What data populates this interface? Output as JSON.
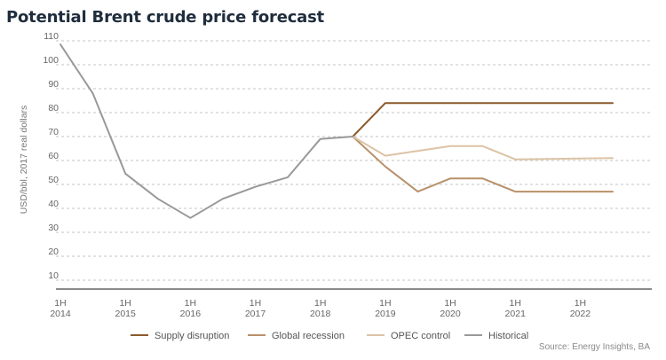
{
  "chart_data": {
    "type": "line",
    "title": "Potential Brent crude price forecast",
    "ylabel": "USD/bbl, 2017 real dollars",
    "xlabel": "",
    "ylim": [
      5,
      110
    ],
    "yticks": [
      10,
      20,
      30,
      40,
      50,
      60,
      70,
      80,
      90,
      100,
      110
    ],
    "grid": true,
    "legend_position": "bottom",
    "x_ticks": [
      {
        "x": 2014.0,
        "l1": "1H",
        "l2": "2014"
      },
      {
        "x": 2015.0,
        "l1": "1H",
        "l2": "2015"
      },
      {
        "x": 2016.0,
        "l1": "1H",
        "l2": "2016"
      },
      {
        "x": 2017.0,
        "l1": "1H",
        "l2": "2017"
      },
      {
        "x": 2018.0,
        "l1": "1H",
        "l2": "2018"
      },
      {
        "x": 2019.0,
        "l1": "1H",
        "l2": "2019"
      },
      {
        "x": 2020.0,
        "l1": "1H",
        "l2": "2020"
      },
      {
        "x": 2021.0,
        "l1": "1H",
        "l2": "2021"
      },
      {
        "x": 2022.0,
        "l1": "1H",
        "l2": "2022"
      }
    ],
    "series": [
      {
        "name": "Supply disruption",
        "color": "#8b5a2b",
        "x": [
          2018.5,
          2019.0,
          2022.5
        ],
        "y": [
          70,
          84,
          84
        ]
      },
      {
        "name": "Global recession",
        "color": "#b8906a",
        "x": [
          2018.5,
          2019.0,
          2019.5,
          2020.0,
          2020.5,
          2021.0,
          2022.5
        ],
        "y": [
          70,
          57.5,
          47,
          52.5,
          52.5,
          47,
          47
        ]
      },
      {
        "name": "OPEC control",
        "color": "#dcc3a6",
        "x": [
          2018.5,
          2019.0,
          2020.0,
          2020.5,
          2021.0,
          2022.5
        ],
        "y": [
          70,
          62,
          66,
          66,
          60.5,
          61
        ]
      },
      {
        "name": "Historical",
        "color": "#999999",
        "x": [
          2014.0,
          2014.5,
          2015.0,
          2015.5,
          2016.0,
          2016.5,
          2017.0,
          2017.5,
          2018.0,
          2018.5
        ],
        "y": [
          108.5,
          88,
          54.5,
          44,
          36,
          44,
          49,
          53,
          69,
          70
        ]
      }
    ]
  },
  "source_text": "Source: Energy Insights, BA"
}
